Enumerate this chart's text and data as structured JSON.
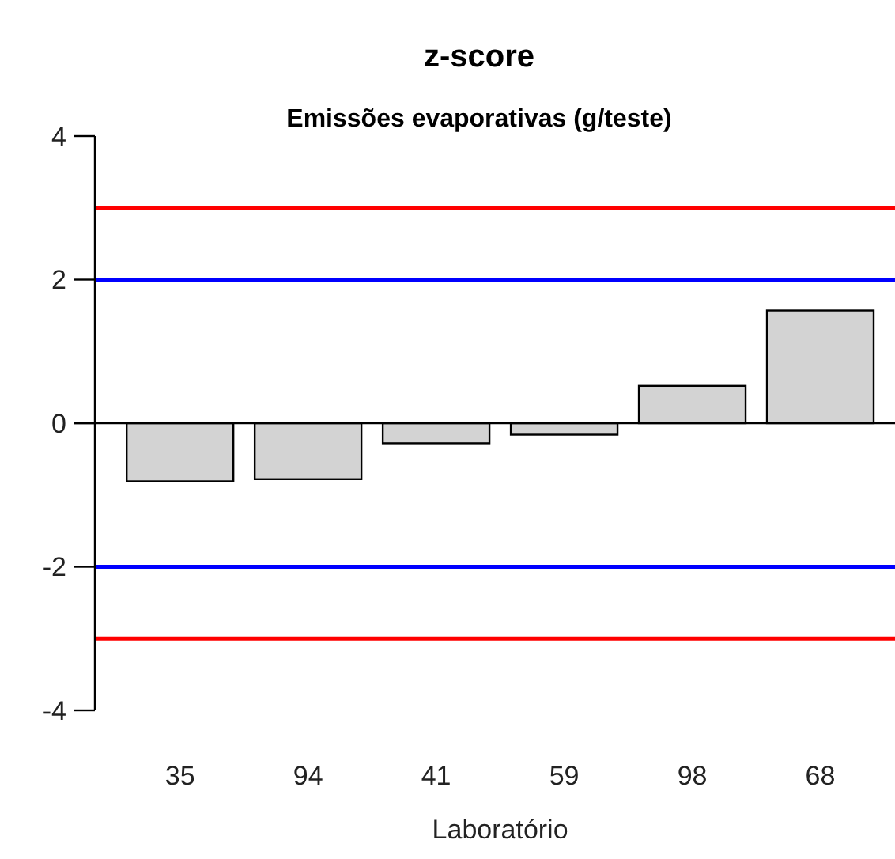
{
  "chart_data": {
    "type": "bar",
    "title": "z-score",
    "subtitle": "Emissões evaporativas (g/teste)",
    "xlabel": "Laboratório",
    "categories": [
      "35",
      "94",
      "41",
      "59",
      "98",
      "68"
    ],
    "values": [
      -0.81,
      -0.78,
      -0.28,
      -0.16,
      0.52,
      1.57
    ],
    "color": "#d3d3d3",
    "ylim": [
      -4,
      4
    ],
    "yticks": [
      -4,
      -2,
      0,
      2,
      4
    ],
    "grid": false,
    "ref_lines": [
      {
        "axis": "y",
        "value": 3,
        "color": "#ff0000"
      },
      {
        "axis": "y",
        "value": 2,
        "color": "#0000ff"
      },
      {
        "axis": "y",
        "value": -2,
        "color": "#0000ff"
      },
      {
        "axis": "y",
        "value": -3,
        "color": "#ff0000"
      }
    ]
  }
}
